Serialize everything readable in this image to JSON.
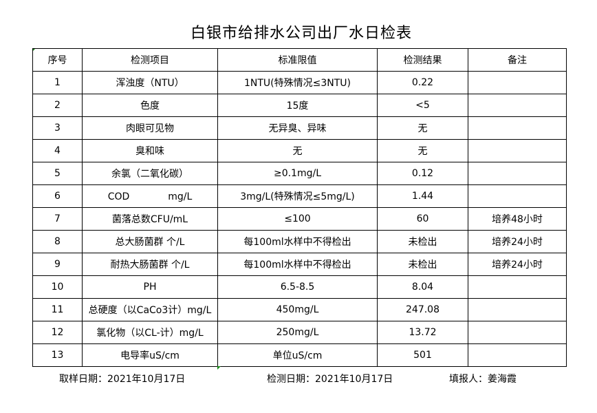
{
  "title": "白银市给排水公司出厂水日检表",
  "columns": [
    "序号",
    "检测项目",
    "标准限值",
    "检测结果",
    "备注"
  ],
  "rows": [
    [
      "1",
      "浑浊度（NTU）",
      "1NTU(特殊情况≤3NTU)",
      "0.22",
      ""
    ],
    [
      "2",
      "色度",
      "15度",
      "<5",
      ""
    ],
    [
      "3",
      "肉眼可见物",
      "无异臭、异味",
      "无",
      ""
    ],
    [
      "4",
      "臭和味",
      "无",
      "无",
      ""
    ],
    [
      "5",
      "余氯（二氧化碳）",
      "≥0.1mg/L",
      "0.12",
      ""
    ],
    [
      "6",
      "COD　　　　mg/L",
      "3mg/L(特殊情况≤5mg/L)",
      "1.44",
      ""
    ],
    [
      "7",
      "菌落总数CFU/mL",
      "≤100",
      "60",
      "培养48小时"
    ],
    [
      "8",
      "总大肠菌群 个/L",
      "每100ml水样中不得检出",
      "未检出",
      "培养24小时"
    ],
    [
      "9",
      "耐热大肠菌群 个/L",
      "每100ml水样中不得检出",
      "未检出",
      "培养24小时"
    ],
    [
      "10",
      "PH",
      "6.5-8.5",
      "8.04",
      ""
    ],
    [
      "11",
      "总硬度（以CaCo3计）mg/L",
      "450mg/L",
      "247.08",
      ""
    ],
    [
      "12",
      "氯化物（以CL-计）mg/L",
      "250mg/L",
      "13.72",
      ""
    ],
    [
      "13",
      "电导率uS/cm",
      "单位uS/cm",
      "501",
      ""
    ]
  ],
  "footer": {
    "sample_date": "取样日期：2021年10月17日",
    "test_date": "检测日期：2021年10月17日",
    "reporter": "填报人：姜海霞"
  }
}
